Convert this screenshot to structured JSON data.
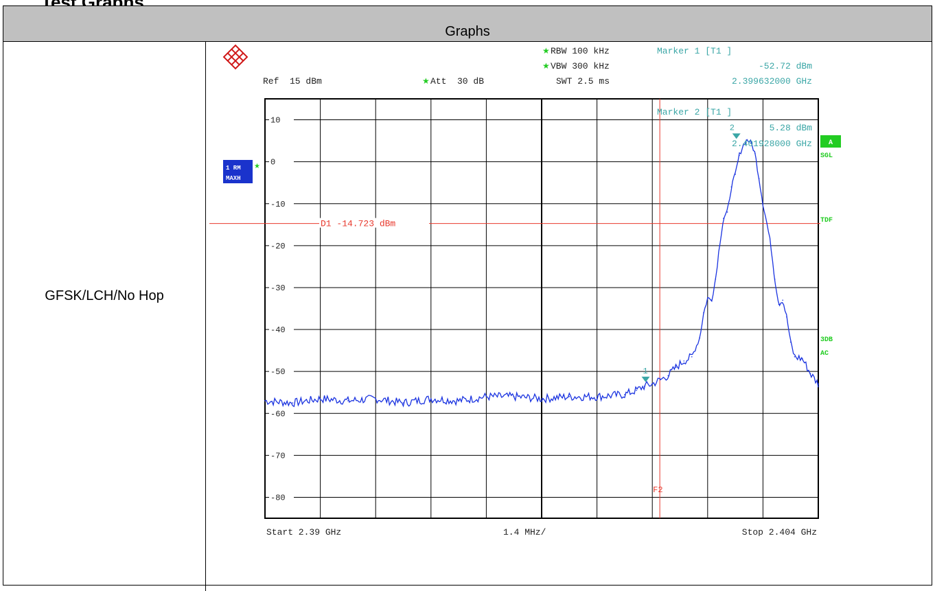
{
  "page": {
    "clipped_title": "Test Graphs",
    "table_header": "Graphs",
    "row_label": "GFSK/LCH/No Hop"
  },
  "analyzer": {
    "rbw": "RBW 100 kHz",
    "vbw": "VBW 300 kHz",
    "swt": "SWT 2.5 ms",
    "ref": "Ref  15 dBm",
    "att": "Att  30 dB",
    "marker1": {
      "title": "Marker 1 [T1 ]",
      "level": "-52.72 dBm",
      "freq": "2.399632000 GHz",
      "label": "1",
      "x_ghz": 2.399632,
      "y_dbm": -52.72
    },
    "marker2": {
      "title": "Marker 2 [T1 ]",
      "level": "5.28 dBm",
      "freq": "2.401928000 GHz",
      "label": "2",
      "x_ghz": 2.401928,
      "y_dbm": 5.28
    },
    "trace_badge": {
      "line1": "1 RM",
      "line2": "MAXH"
    },
    "right_labels": [
      "A",
      "SGL",
      "TDF",
      "3DB",
      "AC"
    ],
    "start": "Start 2.39 GHz",
    "span": "1.4 MHz/",
    "stop": "Stop 2.404 GHz",
    "colors": {
      "trace": "#1a33e0",
      "display_line": "#e8382c",
      "marker": "#3aa6a6",
      "green": "#22cc22",
      "badge": "#1a33cc"
    }
  },
  "chart_data": {
    "type": "line",
    "xlim": [
      2.39,
      2.404
    ],
    "ylim": [
      -85,
      15
    ],
    "yticks": [
      10,
      0,
      -10,
      -20,
      -30,
      -40,
      -50,
      -60,
      -70,
      -80
    ],
    "ytick_labels": [
      "10",
      "0",
      "-10",
      "-20",
      "-30",
      "-40",
      "-50",
      "-60",
      "-70",
      "-80"
    ],
    "display_line": {
      "label": "D1 -14.723 dBm",
      "value": -14.723
    },
    "frequency_line": {
      "label": "F2",
      "x": 2.39999
    },
    "series": [
      {
        "x": [
          2.39,
          2.3907,
          2.3914,
          2.3921,
          2.3928,
          2.3935,
          2.3942,
          2.3949,
          2.3956,
          2.3963,
          2.397,
          2.3977,
          2.3984,
          2.3991,
          2.3994,
          2.3996,
          2.3998,
          2.4,
          2.4002,
          2.4004,
          2.4006,
          2.4008,
          2.401,
          2.4011,
          2.4012,
          2.4013,
          2.4014,
          2.4015,
          2.4016,
          2.4017,
          2.4018,
          2.4019,
          2.402,
          2.4021,
          2.4022,
          2.4023,
          2.4024,
          2.4025,
          2.4026,
          2.4027,
          2.4028,
          2.4029,
          2.403,
          2.4031,
          2.4032,
          2.4033,
          2.4034,
          2.4036,
          2.4038,
          2.404
        ],
        "y": [
          -57,
          -57.5,
          -56.5,
          -57,
          -56.5,
          -57.5,
          -56.5,
          -57,
          -56,
          -56,
          -56.5,
          -56,
          -56,
          -55.5,
          -54.5,
          -53.5,
          -53,
          -52,
          -51,
          -49,
          -47.5,
          -46.5,
          -42,
          -36,
          -32.5,
          -33,
          -28,
          -20,
          -13.5,
          -12,
          -6,
          -3,
          1.5,
          4,
          5.28,
          4.5,
          2,
          -4,
          -10,
          -14.7,
          -20,
          -28,
          -34,
          -33,
          -37,
          -43,
          -46.5,
          -47,
          -50.5,
          -53
        ]
      }
    ]
  }
}
